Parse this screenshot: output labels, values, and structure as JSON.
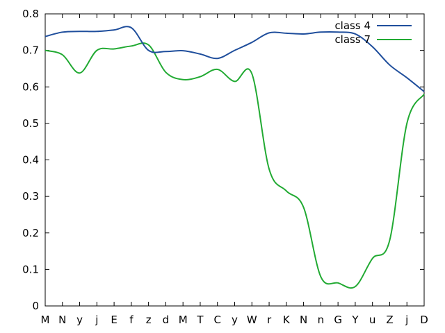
{
  "chart_data": {
    "type": "line",
    "title": "",
    "xlabel": "",
    "ylabel": "",
    "categories": [
      "M",
      "N",
      "y",
      "j",
      "E",
      "f",
      "z",
      "d",
      "M",
      "T",
      "C",
      "y",
      "W",
      "r",
      "K",
      "N",
      "n",
      "G",
      "Y",
      "u",
      "Z",
      "j",
      "D"
    ],
    "ylim": [
      0,
      0.8
    ],
    "yticks": [
      "0",
      "0.1",
      "0.2",
      "0.3",
      "0.4",
      "0.5",
      "0.6",
      "0.7",
      "0.8"
    ],
    "grid": false,
    "legend_position": "top-right",
    "series": [
      {
        "name": "class 4",
        "color": "#1f4e9c",
        "values": [
          0.738,
          0.75,
          0.752,
          0.752,
          0.756,
          0.762,
          0.7,
          0.697,
          0.699,
          0.69,
          0.678,
          0.7,
          0.722,
          0.748,
          0.747,
          0.745,
          0.75,
          0.75,
          0.745,
          0.71,
          0.66,
          0.625,
          0.587
        ]
      },
      {
        "name": "class 7",
        "color": "#22aa33",
        "values": [
          0.7,
          0.688,
          0.638,
          0.7,
          0.704,
          0.712,
          0.715,
          0.64,
          0.62,
          0.628,
          0.648,
          0.615,
          0.636,
          0.375,
          0.315,
          0.27,
          0.08,
          0.063,
          0.053,
          0.13,
          0.18,
          0.5,
          0.58
        ]
      }
    ]
  }
}
